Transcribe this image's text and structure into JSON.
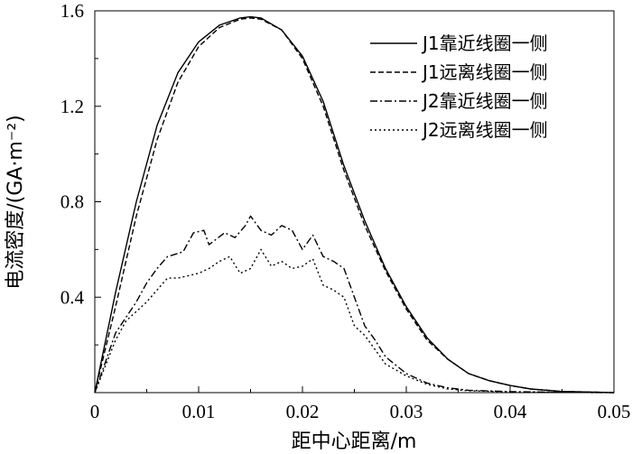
{
  "chart_data": {
    "type": "line",
    "xlabel": "距中心距离/m",
    "ylabel": "电流密度/(GA·m⁻²)",
    "xlim": [
      0,
      0.05
    ],
    "ylim": [
      0,
      1.6
    ],
    "xticks": [
      0,
      0.01,
      0.02,
      0.03,
      0.04,
      0.05
    ],
    "xtick_labels": [
      "0",
      "0.01",
      "0.02",
      "0.03",
      "0.04",
      "0.05"
    ],
    "yticks": [
      0.4,
      0.8,
      1.2,
      1.6
    ],
    "ytick_labels": [
      "0.4",
      "0.8",
      "1.2",
      "1.6"
    ],
    "grid": false,
    "legend_position": "top-right",
    "series": [
      {
        "name": "J1靠近线圈一侧",
        "dash": "solid",
        "x": [
          0,
          0.002,
          0.004,
          0.006,
          0.008,
          0.01,
          0.012,
          0.014,
          0.015,
          0.016,
          0.018,
          0.02,
          0.022,
          0.024,
          0.026,
          0.028,
          0.03,
          0.032,
          0.034,
          0.036,
          0.038,
          0.04,
          0.042,
          0.045,
          0.05
        ],
        "y": [
          0.0,
          0.42,
          0.8,
          1.12,
          1.34,
          1.47,
          1.54,
          1.57,
          1.575,
          1.57,
          1.52,
          1.41,
          1.22,
          0.95,
          0.72,
          0.52,
          0.36,
          0.23,
          0.14,
          0.08,
          0.05,
          0.03,
          0.015,
          0.005,
          0.0
        ]
      },
      {
        "name": "J1远离线圈一侧",
        "dash": "dashed",
        "x": [
          0,
          0.002,
          0.004,
          0.006,
          0.008,
          0.01,
          0.012,
          0.014,
          0.015,
          0.016,
          0.018,
          0.02,
          0.022,
          0.024,
          0.026,
          0.028,
          0.03,
          0.032,
          0.034,
          0.036,
          0.038,
          0.04,
          0.042,
          0.045,
          0.05
        ],
        "y": [
          0.0,
          0.36,
          0.74,
          1.06,
          1.3,
          1.45,
          1.53,
          1.565,
          1.57,
          1.565,
          1.52,
          1.4,
          1.2,
          0.93,
          0.7,
          0.51,
          0.35,
          0.22,
          0.14,
          0.08,
          0.05,
          0.03,
          0.015,
          0.005,
          0.0
        ]
      },
      {
        "name": "J2靠近线圈一侧",
        "dash": "dashdot",
        "x": [
          0,
          0.002,
          0.004,
          0.005,
          0.006,
          0.007,
          0.0085,
          0.0095,
          0.0105,
          0.011,
          0.0125,
          0.0135,
          0.0145,
          0.015,
          0.016,
          0.017,
          0.018,
          0.019,
          0.02,
          0.021,
          0.022,
          0.023,
          0.024,
          0.025,
          0.026,
          0.027,
          0.028,
          0.03,
          0.032,
          0.034,
          0.036,
          0.04,
          0.045,
          0.05
        ],
        "y": [
          0.0,
          0.25,
          0.38,
          0.46,
          0.52,
          0.57,
          0.59,
          0.67,
          0.68,
          0.62,
          0.67,
          0.65,
          0.7,
          0.74,
          0.68,
          0.66,
          0.7,
          0.68,
          0.6,
          0.66,
          0.57,
          0.55,
          0.52,
          0.4,
          0.28,
          0.22,
          0.15,
          0.08,
          0.04,
          0.02,
          0.01,
          0.004,
          0.001,
          0.0
        ]
      },
      {
        "name": "J2远离线圈一侧",
        "dash": "dotted",
        "x": [
          0,
          0.002,
          0.003,
          0.005,
          0.006,
          0.007,
          0.008,
          0.009,
          0.01,
          0.011,
          0.012,
          0.013,
          0.014,
          0.015,
          0.016,
          0.017,
          0.018,
          0.019,
          0.02,
          0.021,
          0.022,
          0.023,
          0.024,
          0.025,
          0.026,
          0.027,
          0.028,
          0.03,
          0.032,
          0.034,
          0.036,
          0.04,
          0.045,
          0.05
        ],
        "y": [
          0.0,
          0.22,
          0.3,
          0.38,
          0.43,
          0.48,
          0.48,
          0.49,
          0.5,
          0.52,
          0.55,
          0.57,
          0.5,
          0.52,
          0.6,
          0.53,
          0.55,
          0.52,
          0.53,
          0.56,
          0.45,
          0.43,
          0.4,
          0.28,
          0.24,
          0.18,
          0.12,
          0.07,
          0.035,
          0.015,
          0.008,
          0.003,
          0.001,
          0.0
        ]
      }
    ]
  }
}
